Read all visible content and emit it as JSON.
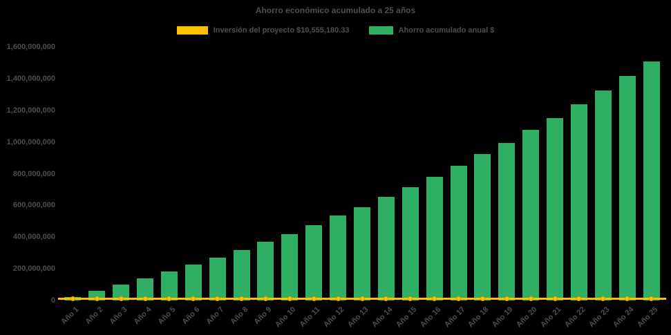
{
  "chart": {
    "title": "Ahorro económico acumulado a 25 años",
    "background_color": "#000000",
    "text_color": "#4e4e4e",
    "legend": [
      {
        "label": "Inversión del proyecto $10,555,180.33",
        "color": "#FFC000"
      },
      {
        "label": "Ahorro acumulado anual $",
        "color": "#2FAF64"
      }
    ]
  },
  "chart_data": {
    "type": "bar",
    "title": "Ahorro económico acumulado a 25 años",
    "categories": [
      "Año 1",
      "Año 2",
      "Año 3",
      "Año 4",
      "Año 5",
      "Año 6",
      "Año 7",
      "Año 8",
      "Año 9",
      "Año 10",
      "Año 11",
      "Año 12",
      "Año 13",
      "Año 14",
      "Año 15",
      "Año 16",
      "Año 17",
      "Año 18",
      "Año 19",
      "Año 20",
      "Año 21",
      "Año 22",
      "Año 23",
      "Año 24",
      "Año 25"
    ],
    "series": [
      {
        "name": "Ahorro acumulado anual $",
        "type": "bar",
        "color": "#2FAF64",
        "values": [
          20000000,
          60000000,
          100000000,
          140000000,
          185000000,
          225000000,
          270000000,
          320000000,
          370000000,
          420000000,
          475000000,
          535000000,
          590000000,
          655000000,
          715000000,
          780000000,
          850000000,
          925000000,
          995000000,
          1075000000,
          1150000000,
          1240000000,
          1325000000,
          1415000000,
          1510000000
        ]
      },
      {
        "name": "Inversión del proyecto $10,555,180.33",
        "type": "line",
        "color": "#FFC000",
        "marker": "circle",
        "constant_value": 10555180.33
      }
    ],
    "ylim": [
      0,
      1600000000
    ],
    "ytick_step": 200000000,
    "ytick_labels": [
      "0",
      "200,000,000",
      "400,000,000",
      "600,000,000",
      "800,000,000",
      "1,000,000,000",
      "1,200,000,000",
      "1,400,000,000",
      "1,600,000,000"
    ],
    "xlabel": "",
    "ylabel": "",
    "legend_position": "top",
    "grid": false
  }
}
